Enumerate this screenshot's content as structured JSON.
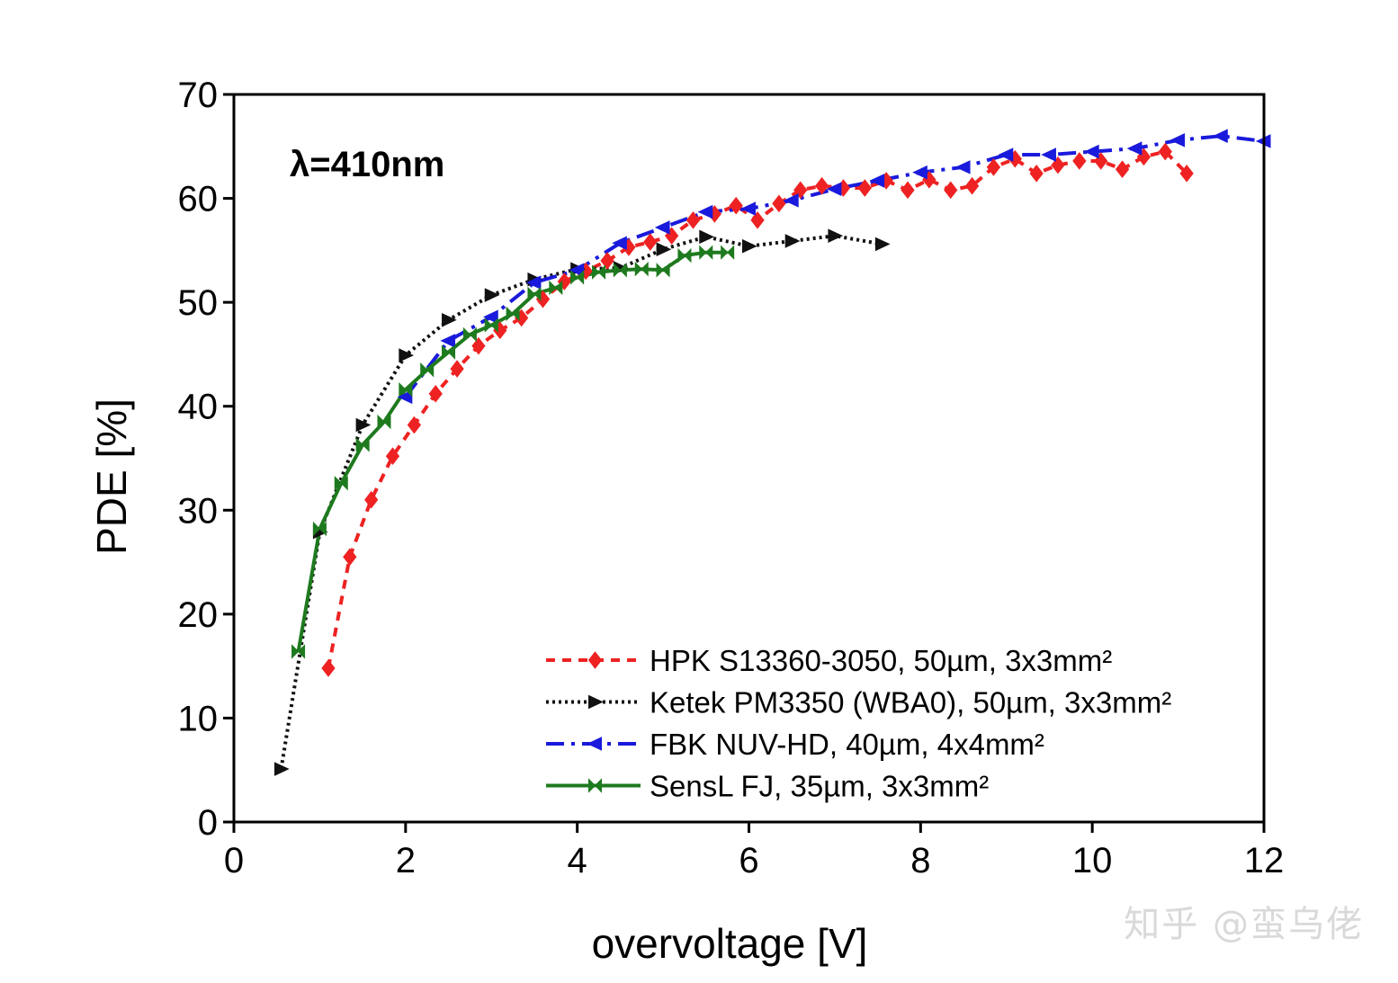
{
  "chart_data": {
    "type": "line",
    "title": "",
    "annotation": "λ=410nm",
    "xlabel": "overvoltage [V]",
    "ylabel": "PDE [%]",
    "xlim": [
      0,
      12
    ],
    "ylim": [
      0,
      70
    ],
    "xticks": [
      0,
      2,
      4,
      6,
      8,
      10,
      12
    ],
    "yticks": [
      0,
      10,
      20,
      30,
      40,
      50,
      60,
      70
    ],
    "legend_position": "bottom-right",
    "series": [
      {
        "name": "HPK S13360-3050, 50µm, 3x3mm²",
        "color": "#ee2222",
        "line": "dashed",
        "marker": "diamond",
        "x": [
          1.1,
          1.35,
          1.6,
          1.85,
          2.1,
          2.35,
          2.6,
          2.85,
          3.1,
          3.35,
          3.6,
          3.85,
          4.1,
          4.35,
          4.6,
          4.85,
          5.1,
          5.35,
          5.6,
          5.85,
          6.1,
          6.35,
          6.6,
          6.85,
          7.1,
          7.35,
          7.6,
          7.85,
          8.1,
          8.35,
          8.6,
          8.85,
          9.1,
          9.35,
          9.6,
          9.85,
          10.1,
          10.35,
          10.6,
          10.85,
          11.1
        ],
        "y": [
          14.8,
          25.5,
          31.0,
          35.2,
          38.2,
          41.2,
          43.6,
          45.8,
          47.3,
          48.5,
          50.3,
          52.0,
          53.0,
          54.0,
          55.3,
          55.8,
          56.4,
          57.9,
          58.5,
          59.3,
          57.9,
          59.5,
          60.8,
          61.2,
          61.0,
          61.0,
          61.7,
          60.8,
          61.8,
          60.8,
          61.2,
          63.0,
          63.8,
          62.4,
          63.2,
          63.6,
          63.6,
          62.8,
          64.0,
          64.5,
          62.4
        ]
      },
      {
        "name": "Ketek PM3350 (WBA0), 50µm, 3x3mm²",
        "color": "#111111",
        "line": "dotted",
        "marker": "triangle-right",
        "x": [
          0.55,
          1.0,
          1.5,
          2.0,
          2.5,
          3.0,
          3.5,
          4.0,
          4.5,
          5.0,
          5.5,
          6.0,
          6.5,
          7.0,
          7.55
        ],
        "y": [
          5.1,
          27.9,
          38.2,
          44.9,
          48.3,
          50.7,
          52.2,
          53.2,
          53.3,
          55.1,
          56.3,
          55.4,
          55.9,
          56.4,
          55.6
        ]
      },
      {
        "name": "FBK NUV-HD, 40µm, 4x4mm²",
        "color": "#1a1adc",
        "line": "dashdot",
        "marker": "triangle-left",
        "x": [
          2.0,
          2.5,
          3.0,
          3.5,
          4.0,
          4.5,
          5.0,
          5.5,
          6.0,
          6.5,
          7.0,
          7.5,
          8.0,
          8.5,
          9.0,
          9.5,
          10.0,
          10.5,
          11.0,
          11.5,
          12.0
        ],
        "y": [
          40.9,
          46.3,
          48.6,
          51.9,
          53.1,
          55.7,
          57.2,
          58.7,
          59.0,
          59.8,
          60.9,
          61.7,
          62.5,
          63.0,
          64.2,
          64.2,
          64.5,
          64.8,
          65.6,
          66.0,
          65.5
        ]
      },
      {
        "name": "SensL FJ, 35µm, 3x3mm²",
        "color": "#1e7a1e",
        "line": "solid",
        "marker": "bowtie",
        "x": [
          0.75,
          1.0,
          1.25,
          1.5,
          1.75,
          2.0,
          2.25,
          2.5,
          2.75,
          3.0,
          3.25,
          3.5,
          3.75,
          4.0,
          4.25,
          4.5,
          4.75,
          5.0,
          5.25,
          5.5,
          5.75
        ],
        "y": [
          16.4,
          28.2,
          32.6,
          36.3,
          38.5,
          41.6,
          43.5,
          45.2,
          46.9,
          47.8,
          48.9,
          50.8,
          51.4,
          52.4,
          52.9,
          53.1,
          53.2,
          53.1,
          54.5,
          54.8,
          54.8
        ]
      }
    ]
  },
  "watermark": "知乎 @蛮乌佬"
}
